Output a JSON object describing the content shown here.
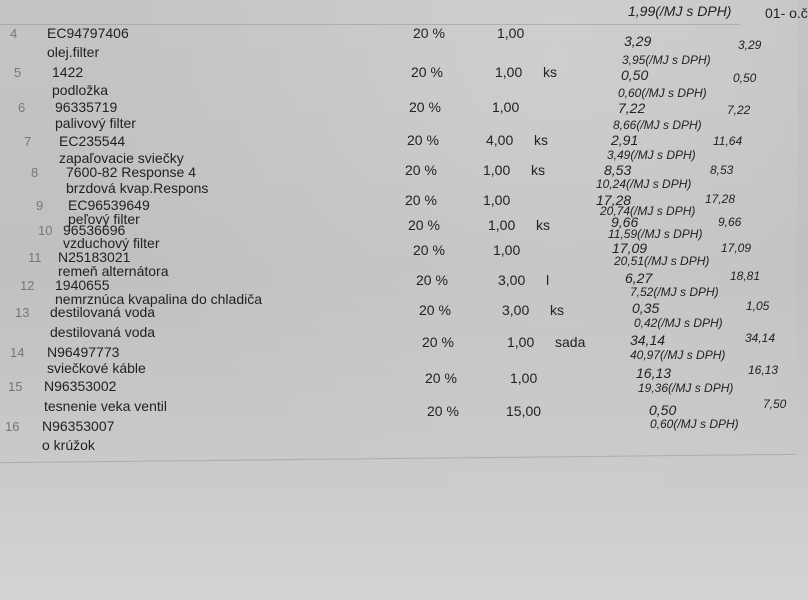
{
  "header": {
    "top_vat_price": "1,99(/MJ s DPH)",
    "top_right": "01- o.č"
  },
  "items": [
    {
      "no": "4",
      "code": "EC94797406",
      "desc": [
        "olej.filter"
      ],
      "vat": "20 %",
      "qty": "1,00",
      "unit": "",
      "price": "3,29",
      "total": "3,29",
      "price_vat": "3,95(/MJ s DPH)"
    },
    {
      "no": "5",
      "code": "1422",
      "desc": [
        "podložka"
      ],
      "vat": "20 %",
      "qty": "1,00",
      "unit": "ks",
      "price": "0,50",
      "total": "0,50",
      "price_vat": "0,60(/MJ s DPH)"
    },
    {
      "no": "6",
      "code": "96335719",
      "desc": [
        "palivový filter"
      ],
      "vat": "20 %",
      "qty": "1,00",
      "unit": "",
      "price": "7,22",
      "total": "7,22",
      "price_vat": "8,66(/MJ s DPH)"
    },
    {
      "no": "7",
      "code": "EC235544",
      "desc": [
        "zapaľovacie sviečky"
      ],
      "vat": "20 %",
      "qty": "4,00",
      "unit": "ks",
      "price": "2,91",
      "total": "11,64",
      "price_vat": "3,49(/MJ s DPH)"
    },
    {
      "no": "8",
      "code": "7600-82 Response 4",
      "desc": [
        "brzdová kvap.Respons"
      ],
      "vat": "20 %",
      "qty": "1,00",
      "unit": "ks",
      "price": "8,53",
      "total": "8,53",
      "price_vat": "10,24(/MJ s DPH)"
    },
    {
      "no": "9",
      "code": "EC96539649",
      "desc": [
        "peľový filter"
      ],
      "vat": "20 %",
      "qty": "1,00",
      "unit": "",
      "price": "17,28",
      "total": "17,28",
      "price_vat": "20,74(/MJ s DPH)"
    },
    {
      "no": "10",
      "code": "96536696",
      "desc": [
        "vzduchový filter"
      ],
      "vat": "20 %",
      "qty": "1,00",
      "unit": "ks",
      "price": "9,66",
      "total": "9,66",
      "price_vat": "11,59(/MJ s DPH)"
    },
    {
      "no": "11",
      "code": "N25183021",
      "desc": [
        "remeň alternátora"
      ],
      "vat": "20 %",
      "qty": "1,00",
      "unit": "",
      "price": "17,09",
      "total": "17,09",
      "price_vat": "20,51(/MJ s DPH)"
    },
    {
      "no": "12",
      "code": "1940655",
      "desc": [
        "nemrznúca kvapalina do chladiča"
      ],
      "vat": "20 %",
      "qty": "3,00",
      "unit": "l",
      "price": "6,27",
      "total": "18,81",
      "price_vat": "7,52(/MJ s DPH)"
    },
    {
      "no": "13",
      "code": "destilovaná voda",
      "desc": [
        "destilovaná voda"
      ],
      "vat": "20 %",
      "qty": "3,00",
      "unit": "ks",
      "price": "0,35",
      "total": "1,05",
      "price_vat": "0,42(/MJ s DPH)"
    },
    {
      "no": "14",
      "code": "N96497773",
      "desc": [
        "sviečkové káble"
      ],
      "vat": "20 %",
      "qty": "1,00",
      "unit": "sada",
      "price": "34,14",
      "total": "34,14",
      "price_vat": "40,97(/MJ s DPH)"
    },
    {
      "no": "15",
      "code": "N96353002",
      "desc": [
        "tesnenie veka ventil"
      ],
      "vat": "20 %",
      "qty": "1,00",
      "unit": "",
      "price": "16,13",
      "total": "16,13",
      "price_vat": "19,36(/MJ s DPH)"
    },
    {
      "no": "16",
      "code": "N96353007",
      "desc": [
        "o krúžok"
      ],
      "vat": "20 %",
      "qty": "15,00",
      "unit": "",
      "price": "0,50",
      "total": "7,50",
      "price_vat": "0,60(/MJ s DPH)"
    }
  ]
}
